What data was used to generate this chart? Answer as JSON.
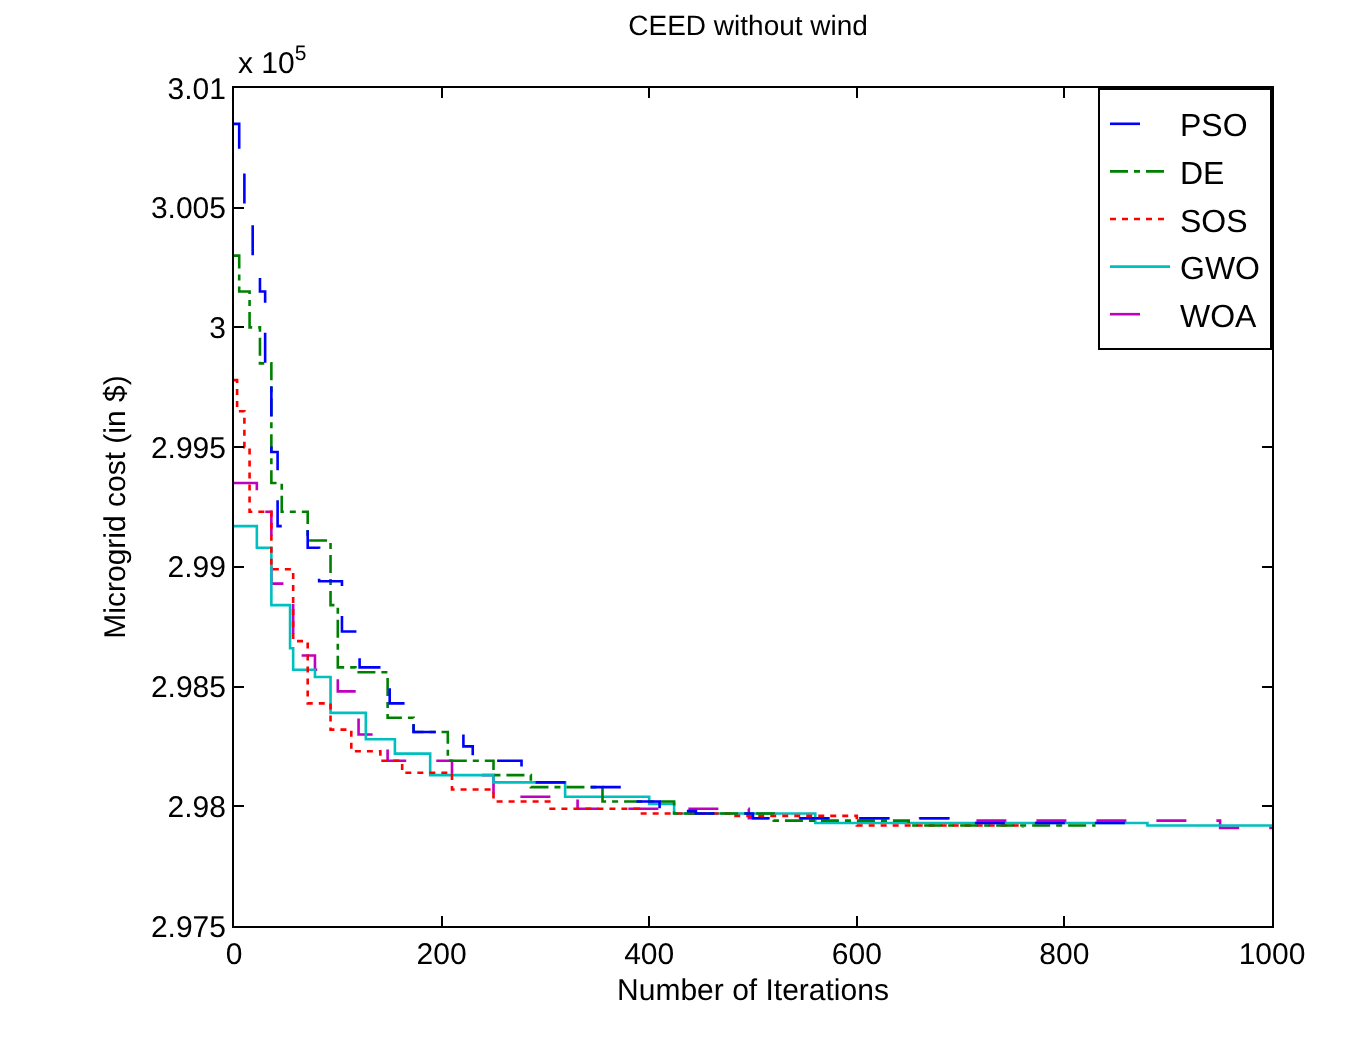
{
  "chart_data": {
    "type": "step",
    "title": "CEED without wind",
    "xlabel": "Number of Iterations",
    "ylabel": "Microgrid cost (in $)",
    "annotations": [
      "x 10$^{5}$"
    ],
    "xlim": [
      0,
      1000
    ],
    "xticks": [
      0,
      200,
      400,
      600,
      800,
      1000
    ],
    "ylim": [
      2.975,
      3.01
    ],
    "yticks": [
      2.975,
      2.98,
      2.985,
      2.99,
      2.995,
      3,
      3.005,
      3.01
    ],
    "grid": false,
    "legend": "top right",
    "marker": "none",
    "series": [
      {
        "name": "PSO",
        "color": "#0000ff",
        "line_style": "dashed",
        "x": [
          0,
          5,
          10,
          18,
          25,
          30,
          36,
          42,
          71,
          82,
          104,
          121,
          150,
          173,
          221,
          230,
          277,
          325,
          380,
          410,
          445,
          500,
          700,
          860
        ],
        "values": [
          3.0085,
          3.0065,
          3.005,
          3.003,
          3.0015,
          2.998,
          2.9948,
          2.9917,
          2.9908,
          2.9894,
          2.9873,
          2.9858,
          2.9843,
          2.9831,
          2.9825,
          2.9819,
          2.981,
          2.9808,
          2.9802,
          2.9798,
          2.9797,
          2.9795,
          2.9793,
          2.9793
        ]
      },
      {
        "name": "DE",
        "color": "#008000",
        "line_style": "dashdot",
        "x": [
          0,
          5,
          15,
          25,
          36,
          46,
          71,
          93,
          100,
          117,
          148,
          173,
          206,
          250,
          286,
          355,
          424,
          520,
          650,
          830
        ],
        "values": [
          3.003,
          3.0015,
          3.0,
          2.9985,
          2.9935,
          2.9923,
          2.9911,
          2.9884,
          2.9858,
          2.9856,
          2.9837,
          2.9831,
          2.9819,
          2.9813,
          2.9808,
          2.9802,
          2.9797,
          2.9794,
          2.9792,
          2.9792
        ]
      },
      {
        "name": "SOS",
        "color": "#ff0000",
        "line_style": "dotted",
        "x": [
          0,
          3,
          10,
          15,
          36,
          57,
          71,
          93,
          113,
          141,
          162,
          210,
          250,
          305,
          390,
          480,
          600,
          760
        ],
        "values": [
          2.9978,
          2.9965,
          2.995,
          2.9923,
          2.9899,
          2.9869,
          2.9843,
          2.9832,
          2.9823,
          2.9819,
          2.9814,
          2.9807,
          2.9802,
          2.9799,
          2.9797,
          2.9796,
          2.9792,
          2.9791
        ]
      },
      {
        "name": "GWO",
        "color": "#00bfbf",
        "line_style": "solid",
        "x": [
          0,
          22,
          36,
          54,
          57,
          78,
          93,
          127,
          155,
          189,
          250,
          319,
          400,
          424,
          560,
          880,
          1000
        ],
        "values": [
          2.9917,
          2.9908,
          2.9884,
          2.9866,
          2.9857,
          2.9854,
          2.9839,
          2.9828,
          2.9822,
          2.9813,
          2.981,
          2.9804,
          2.9801,
          2.9797,
          2.9793,
          2.9792,
          2.9792
        ]
      },
      {
        "name": "WOA",
        "color": "#bf00bf",
        "line_style": "dashed",
        "x": [
          0,
          22,
          36,
          57,
          78,
          100,
          120,
          148,
          210,
          250,
          331,
          496,
          690,
          950,
          1000
        ],
        "values": [
          2.9935,
          2.9923,
          2.9893,
          2.9863,
          2.9857,
          2.9848,
          2.983,
          2.9819,
          2.9813,
          2.9804,
          2.9799,
          2.9795,
          2.9794,
          2.9791,
          2.9791
        ]
      }
    ]
  }
}
